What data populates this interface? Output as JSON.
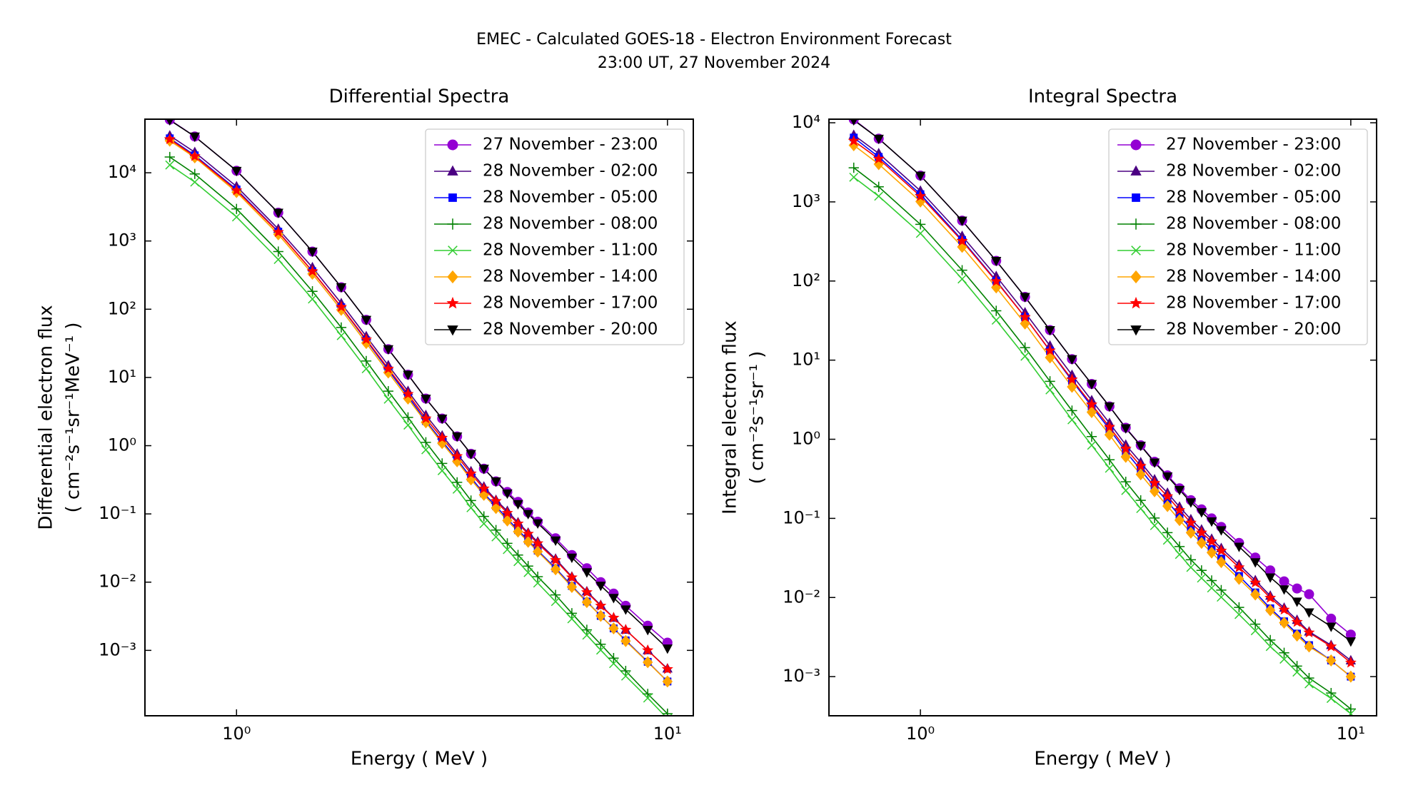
{
  "title": [
    "EMEC - Calculated GOES-18 - Electron Environment Forecast",
    "23:00 UT, 27 November 2024"
  ],
  "chart_data": [
    {
      "type": "line",
      "title": "Differential Spectra",
      "xlabel": "Energy ( MeV )",
      "ylabel": [
        "Differential electron flux",
        "( cm⁻²s⁻¹sr⁻¹MeV⁻¹ )"
      ],
      "xscale": "log",
      "yscale": "log",
      "legend": "upper right",
      "xlim": [
        0.613,
        11.48
      ],
      "ylim": [
        0.00011,
        61000
      ],
      "xticks": [
        {
          "value": 1,
          "label": "10⁰"
        },
        {
          "value": 10,
          "label": "10¹"
        }
      ],
      "yticks": [
        {
          "value": 0.001,
          "label": "10⁻³"
        },
        {
          "value": 0.01,
          "label": "10⁻²"
        },
        {
          "value": 0.1,
          "label": "10⁻¹"
        },
        {
          "value": 1,
          "label": "10⁰"
        },
        {
          "value": 10,
          "label": "10¹"
        },
        {
          "value": 100,
          "label": "10²"
        },
        {
          "value": 1000,
          "label": "10³"
        },
        {
          "value": 10000,
          "label": "10⁴"
        }
      ],
      "x": [
        0.7,
        0.8,
        1.0,
        1.25,
        1.5,
        1.75,
        2.0,
        2.25,
        2.5,
        2.75,
        3.0,
        3.25,
        3.5,
        3.75,
        4.0,
        4.25,
        4.5,
        4.75,
        5.0,
        5.5,
        6.0,
        6.5,
        7.0,
        7.5,
        8.0,
        9.0,
        10.0
      ],
      "series": [
        {
          "name": "27 November - 23:00",
          "color": "#9400d3",
          "marker": "circle",
          "values": [
            60000,
            34000,
            10700,
            2600,
            700,
            210,
            70,
            26,
            11,
            4.9,
            2.5,
            1.37,
            0.76,
            0.46,
            0.3,
            0.21,
            0.15,
            0.105,
            0.077,
            0.044,
            0.025,
            0.016,
            0.01,
            0.0068,
            0.0045,
            0.0023,
            0.0013
          ]
        },
        {
          "name": "28 November - 02:00",
          "color": "#4b0082",
          "marker": "triangle-up",
          "values": [
            35000,
            20000,
            6300,
            1500,
            410,
            122,
            40,
            15,
            6.3,
            2.8,
            1.4,
            0.76,
            0.42,
            0.25,
            0.16,
            0.11,
            0.075,
            0.053,
            0.039,
            0.022,
            0.012,
            0.0073,
            0.0046,
            0.003,
            0.002,
            0.001,
            0.00054
          ]
        },
        {
          "name": "28 November - 05:00",
          "color": "#0000ff",
          "marker": "square",
          "values": [
            32000,
            18000,
            5700,
            1370,
            360,
            107,
            35,
            12.8,
            5.3,
            2.3,
            1.16,
            0.63,
            0.34,
            0.2,
            0.13,
            0.085,
            0.058,
            0.041,
            0.029,
            0.016,
            0.0088,
            0.0052,
            0.0032,
            0.0021,
            0.0014,
            0.00068,
            0.00035
          ]
        },
        {
          "name": "28 November - 08:00",
          "color": "#008000",
          "marker": "plus",
          "values": [
            17000,
            9600,
            2950,
            700,
            183,
            54,
            17.4,
            6.3,
            2.6,
            1.12,
            0.55,
            0.29,
            0.157,
            0.092,
            0.058,
            0.037,
            0.025,
            0.0172,
            0.012,
            0.0065,
            0.0035,
            0.002,
            0.00123,
            0.00077,
            0.0005,
            0.00023,
            0.000118
          ]
        },
        {
          "name": "28 November - 11:00",
          "color": "#32cd32",
          "marker": "x",
          "values": [
            13000,
            7300,
            2250,
            535,
            141,
            41,
            13.4,
            4.8,
            2.0,
            0.87,
            0.43,
            0.23,
            0.123,
            0.072,
            0.046,
            0.03,
            0.02,
            0.0138,
            0.0097,
            0.0052,
            0.0029,
            0.00167,
            0.00101,
            0.00064,
            0.00042,
            0.0002,
            0.0001
          ]
        },
        {
          "name": "28 November - 14:00",
          "color": "#ffa500",
          "marker": "diamond",
          "values": [
            29500,
            16800,
            5200,
            1250,
            330,
            98,
            32,
            11.8,
            4.9,
            2.2,
            1.09,
            0.59,
            0.32,
            0.19,
            0.122,
            0.08,
            0.055,
            0.039,
            0.028,
            0.0154,
            0.0085,
            0.0051,
            0.0032,
            0.0021,
            0.00137,
            0.00067,
            0.00035
          ]
        },
        {
          "name": "28 November - 17:00",
          "color": "#ff0000",
          "marker": "star",
          "values": [
            31000,
            17500,
            5500,
            1350,
            360,
            108,
            36,
            13.4,
            5.7,
            2.5,
            1.3,
            0.7,
            0.39,
            0.235,
            0.154,
            0.103,
            0.072,
            0.051,
            0.037,
            0.021,
            0.0117,
            0.0071,
            0.0045,
            0.003,
            0.002,
            0.001,
            0.00053
          ]
        },
        {
          "name": "28 November - 20:00",
          "color": "#000000",
          "marker": "triangle-down",
          "values": [
            59000,
            34000,
            10700,
            2600,
            700,
            210,
            70,
            26,
            11,
            4.9,
            2.5,
            1.37,
            0.76,
            0.46,
            0.3,
            0.2,
            0.14,
            0.1,
            0.073,
            0.041,
            0.023,
            0.014,
            0.0089,
            0.0059,
            0.004,
            0.002,
            0.00107
          ]
        }
      ]
    },
    {
      "type": "line",
      "title": "Integral Spectra",
      "xlabel": "Energy ( MeV )",
      "ylabel": [
        "Integral electron flux",
        "( cm⁻²s⁻¹sr⁻¹ )"
      ],
      "xscale": "log",
      "yscale": "log",
      "legend": "upper right",
      "xlim": [
        0.613,
        11.48
      ],
      "ylim": [
        0.00032,
        11100
      ],
      "xticks": [
        {
          "value": 1,
          "label": "10⁰"
        },
        {
          "value": 10,
          "label": "10¹"
        }
      ],
      "yticks": [
        {
          "value": 0.001,
          "label": "10⁻³"
        },
        {
          "value": 0.01,
          "label": "10⁻²"
        },
        {
          "value": 0.1,
          "label": "10⁻¹"
        },
        {
          "value": 1,
          "label": "10⁰"
        },
        {
          "value": 10,
          "label": "10¹"
        },
        {
          "value": 100,
          "label": "10²"
        },
        {
          "value": 1000,
          "label": "10³"
        },
        {
          "value": 10000,
          "label": "10⁴"
        }
      ],
      "x": [
        0.7,
        0.8,
        1.0,
        1.25,
        1.5,
        1.75,
        2.0,
        2.25,
        2.5,
        2.75,
        3.0,
        3.25,
        3.5,
        3.75,
        4.0,
        4.25,
        4.5,
        4.75,
        5.0,
        5.5,
        6.0,
        6.5,
        7.0,
        7.5,
        8.0,
        9.0,
        10.0
      ],
      "series": [
        {
          "name": "27 November - 23:00",
          "color": "#9400d3",
          "marker": "circle",
          "values": [
            11000,
            6300,
            2150,
            580,
            180,
            63,
            24,
            10.3,
            5.0,
            2.6,
            1.4,
            0.84,
            0.52,
            0.35,
            0.24,
            0.17,
            0.13,
            0.1,
            0.078,
            0.049,
            0.032,
            0.022,
            0.016,
            0.013,
            0.011,
            0.0054,
            0.0034
          ]
        },
        {
          "name": "28 November - 02:00",
          "color": "#4b0082",
          "marker": "triangle-up",
          "values": [
            7000,
            4100,
            1380,
            370,
            115,
            40,
            15.2,
            6.5,
            3.1,
            1.6,
            0.85,
            0.51,
            0.31,
            0.21,
            0.14,
            0.097,
            0.072,
            0.055,
            0.042,
            0.026,
            0.0165,
            0.0105,
            0.0074,
            0.0052,
            0.0037,
            0.0025,
            0.0016
          ]
        },
        {
          "name": "28 November - 05:00",
          "color": "#0000ff",
          "marker": "square",
          "values": [
            6500,
            3700,
            1250,
            330,
            101,
            35,
            13.1,
            5.5,
            2.6,
            1.34,
            0.7,
            0.41,
            0.25,
            0.163,
            0.108,
            0.074,
            0.054,
            0.041,
            0.031,
            0.0187,
            0.0116,
            0.0073,
            0.005,
            0.0035,
            0.0025,
            0.0016,
            0.001
          ]
        },
        {
          "name": "28 November - 08:00",
          "color": "#008000",
          "marker": "plus",
          "values": [
            2700,
            1550,
            520,
            137,
            42,
            14.4,
            5.4,
            2.3,
            1.08,
            0.55,
            0.29,
            0.169,
            0.101,
            0.066,
            0.044,
            0.03,
            0.022,
            0.0164,
            0.0124,
            0.0075,
            0.0046,
            0.0029,
            0.002,
            0.00136,
            0.00096,
            0.00062,
            0.00039
          ]
        },
        {
          "name": "28 November - 11:00",
          "color": "#32cd32",
          "marker": "x",
          "values": [
            2050,
            1180,
            400,
            106,
            32,
            11.2,
            4.2,
            1.76,
            0.84,
            0.43,
            0.225,
            0.133,
            0.081,
            0.053,
            0.035,
            0.024,
            0.0176,
            0.0132,
            0.0101,
            0.0061,
            0.0038,
            0.0024,
            0.00166,
            0.00114,
            0.00081,
            0.00053,
            0.00034
          ]
        },
        {
          "name": "28 November - 14:00",
          "color": "#ffa500",
          "marker": "diamond",
          "values": [
            5200,
            3000,
            1010,
            270,
            83,
            29,
            10.8,
            4.6,
            2.2,
            1.14,
            0.6,
            0.36,
            0.22,
            0.143,
            0.095,
            0.066,
            0.049,
            0.037,
            0.028,
            0.0172,
            0.0109,
            0.0069,
            0.0048,
            0.0033,
            0.0024,
            0.0016,
            0.001
          ]
        },
        {
          "name": "28 November - 17:00",
          "color": "#ff0000",
          "marker": "star",
          "values": [
            5900,
            3500,
            1180,
            320,
            99,
            35,
            13.2,
            5.7,
            2.75,
            1.43,
            0.76,
            0.46,
            0.28,
            0.19,
            0.127,
            0.088,
            0.066,
            0.051,
            0.039,
            0.024,
            0.0154,
            0.0099,
            0.007,
            0.0049,
            0.0036,
            0.0024,
            0.0015
          ]
        },
        {
          "name": "28 November - 20:00",
          "color": "#000000",
          "marker": "triangle-down",
          "values": [
            10800,
            6300,
            2150,
            580,
            180,
            63,
            24,
            10.3,
            5.0,
            2.6,
            1.38,
            0.83,
            0.51,
            0.34,
            0.23,
            0.16,
            0.12,
            0.092,
            0.071,
            0.044,
            0.028,
            0.018,
            0.0127,
            0.0089,
            0.0065,
            0.0043,
            0.0028
          ]
        }
      ]
    }
  ]
}
